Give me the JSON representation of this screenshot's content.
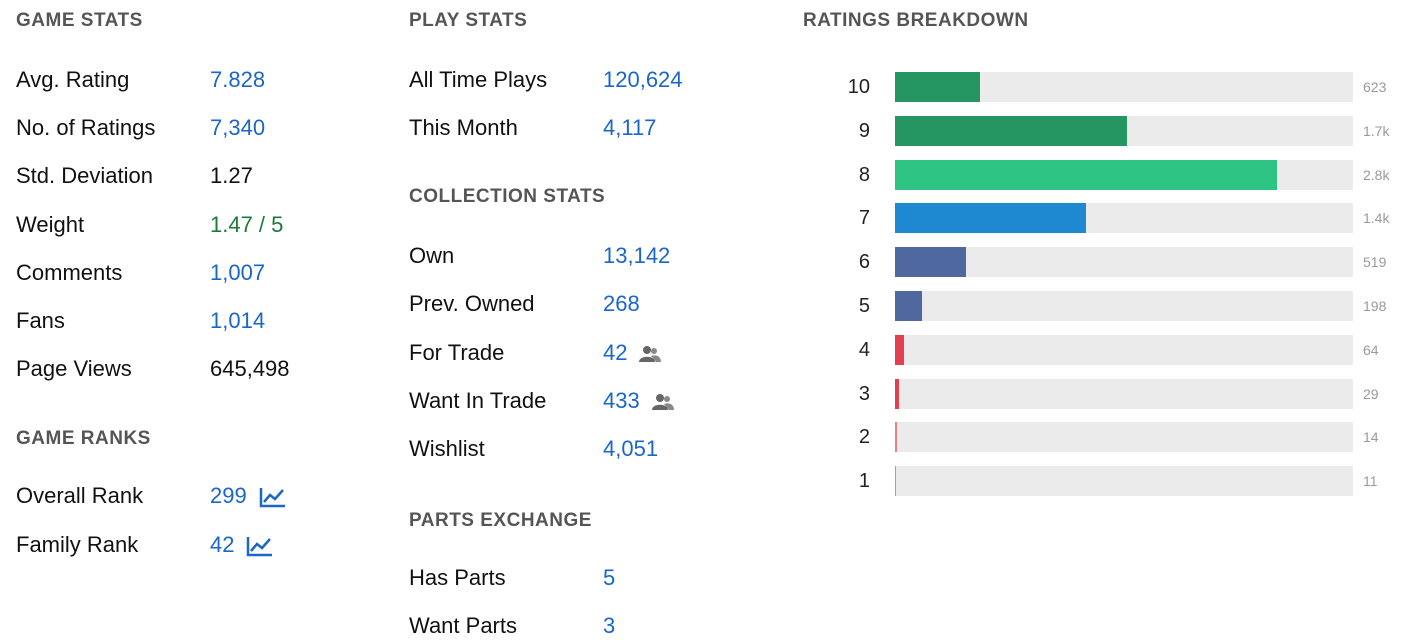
{
  "game_stats": {
    "title": "GAME STATS",
    "rows": [
      {
        "label": "Avg. Rating",
        "value": "7.828",
        "color": "#1a66c9"
      },
      {
        "label": "No. of Ratings",
        "value": "7,340",
        "color": "#1a66c9"
      },
      {
        "label": "Std. Deviation",
        "value": "1.27",
        "color": "#111111"
      },
      {
        "label": "Weight",
        "value": "1.47 / 5",
        "color": "#1e7a3c"
      },
      {
        "label": "Comments",
        "value": "1,007",
        "color": "#1a66c9"
      },
      {
        "label": "Fans",
        "value": "1,014",
        "color": "#1a66c9"
      },
      {
        "label": "Page Views",
        "value": "645,498",
        "color": "#111111"
      }
    ]
  },
  "game_ranks": {
    "title": "GAME RANKS",
    "rows": [
      {
        "label": "Overall Rank",
        "value": "299",
        "color": "#1a66c9"
      },
      {
        "label": "Family Rank",
        "value": "42",
        "color": "#1a66c9"
      }
    ]
  },
  "play_stats": {
    "title": "PLAY STATS",
    "rows": [
      {
        "label": "All Time Plays",
        "value": "120,624",
        "color": "#1a66c9"
      },
      {
        "label": "This Month",
        "value": "4,117",
        "color": "#1a66c9"
      }
    ]
  },
  "collection_stats": {
    "title": "COLLECTION STATS",
    "rows": [
      {
        "label": "Own",
        "value": "13,142",
        "color": "#1a66c9"
      },
      {
        "label": "Prev. Owned",
        "value": "268",
        "color": "#1a66c9"
      },
      {
        "label": "For Trade",
        "value": "42",
        "color": "#1a66c9"
      },
      {
        "label": "Want In Trade",
        "value": "433",
        "color": "#1a66c9"
      },
      {
        "label": "Wishlist",
        "value": "4,051",
        "color": "#1a66c9"
      }
    ]
  },
  "parts_exchange": {
    "title": "PARTS EXCHANGE",
    "rows": [
      {
        "label": "Has Parts",
        "value": "5",
        "color": "#1a66c9"
      },
      {
        "label": "Want Parts",
        "value": "3",
        "color": "#1a66c9"
      }
    ]
  },
  "chart_data": {
    "type": "bar",
    "orientation": "horizontal",
    "title": "RATINGS BREAKDOWN",
    "categories": [
      "10",
      "9",
      "8",
      "7",
      "6",
      "5",
      "4",
      "3",
      "2",
      "1"
    ],
    "values": [
      623,
      1700,
      2800,
      1400,
      519,
      198,
      64,
      29,
      14,
      11
    ],
    "value_labels": [
      "623",
      "1.7k",
      "2.8k",
      "1.4k",
      "519",
      "198",
      "64",
      "29",
      "14",
      "11"
    ],
    "colors": [
      "#259562",
      "#259562",
      "#2ec584",
      "#1e88d0",
      "#5068a0",
      "#5068a0",
      "#e0404f",
      "#e0404f",
      "#ea7f88",
      "#ea7f88"
    ],
    "xlim": [
      0,
      3360
    ]
  }
}
